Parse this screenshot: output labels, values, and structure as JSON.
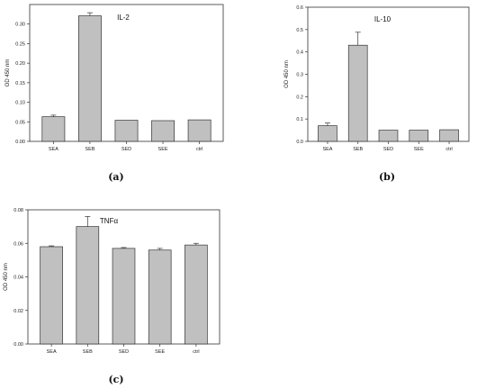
{
  "chart_data": [
    {
      "type": "bar",
      "title": "IL-2",
      "panel_label": "(a)",
      "ylabel": "OD 450 nm",
      "xlabel": "",
      "categories": [
        "SEA",
        "SEB",
        "SED",
        "SEE",
        "ctrl"
      ],
      "values": [
        0.063,
        0.321,
        0.054,
        0.053,
        0.055
      ],
      "errors": [
        0.004,
        0.008,
        0.0,
        0.0,
        0.0
      ],
      "ylim": [
        0,
        0.35
      ],
      "yticks": [
        0.0,
        0.05,
        0.1,
        0.15,
        0.2,
        0.25,
        0.3
      ],
      "ytick_labels": [
        "0.00",
        "0.05",
        "0.10",
        "0.15",
        "0.20",
        "0.25",
        "0.30"
      ],
      "grid": false,
      "bar_color": "#c0c0c0"
    },
    {
      "type": "bar",
      "title": "IL-10",
      "panel_label": "(b)",
      "ylabel": "OD 450 nm",
      "xlabel": "",
      "categories": [
        "SEA",
        "SEB",
        "SED",
        "SEE",
        "ctrl"
      ],
      "values": [
        0.07,
        0.43,
        0.05,
        0.05,
        0.052
      ],
      "errors": [
        0.012,
        0.058,
        0.0,
        0.0,
        0.0
      ],
      "ylim": [
        0,
        0.6
      ],
      "yticks": [
        0.0,
        0.1,
        0.2,
        0.3,
        0.4,
        0.5,
        0.6
      ],
      "ytick_labels": [
        "0.0",
        "0.1",
        "0.2",
        "0.3",
        "0.4",
        "0.5",
        "0.6"
      ],
      "grid": false,
      "bar_color": "#c0c0c0"
    },
    {
      "type": "bar",
      "title": "TNFα",
      "panel_label": "(c)",
      "ylabel": "OD 450 nm",
      "xlabel": "",
      "categories": [
        "SEA",
        "SEB",
        "SED",
        "SEE",
        "ctrl"
      ],
      "values": [
        0.058,
        0.07,
        0.057,
        0.056,
        0.059
      ],
      "errors": [
        0.0005,
        0.006,
        0.0005,
        0.001,
        0.001
      ],
      "ylim": [
        0,
        0.08
      ],
      "yticks": [
        0.0,
        0.02,
        0.04,
        0.06,
        0.08
      ],
      "ytick_labels": [
        "0.00",
        "0.02",
        "0.04",
        "0.06",
        "0.08"
      ],
      "grid": false,
      "bar_color": "#c0c0c0"
    }
  ]
}
